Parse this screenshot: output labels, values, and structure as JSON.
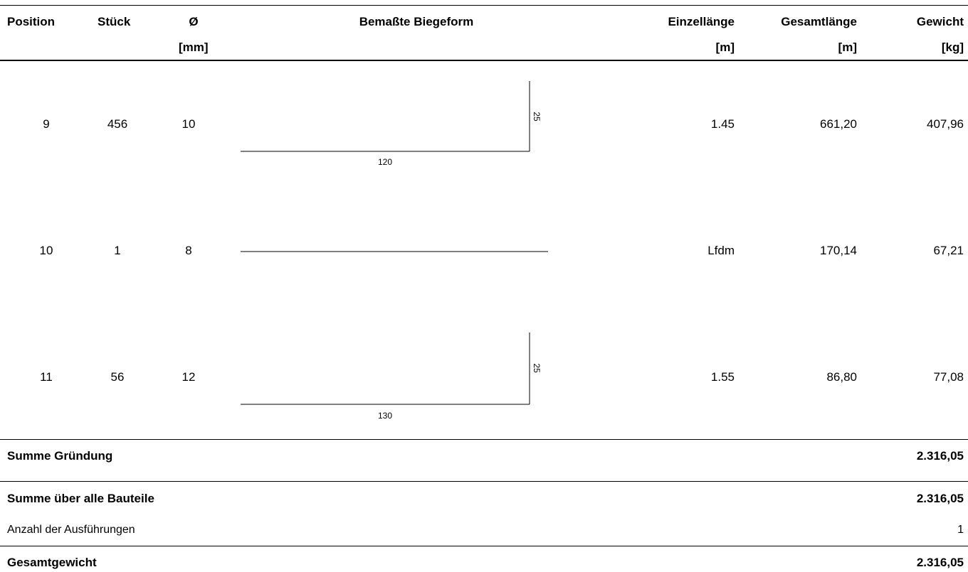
{
  "header": {
    "position": "Position",
    "stueck": "Stück",
    "durchmesser": "Ø",
    "durchmesser_unit": "[mm]",
    "biegeform": "Bemaßte Biegeform",
    "einzellaenge": "Einzellänge",
    "einzellaenge_unit": "[m]",
    "gesamtlaenge": "Gesamtlänge",
    "gesamtlaenge_unit": "[m]",
    "gewicht": "Gewicht",
    "gewicht_unit": "[kg]"
  },
  "rows": [
    {
      "position": "9",
      "stueck": "456",
      "durchmesser": "10",
      "shape": {
        "type": "angle",
        "horizontal_label": "120",
        "vertical_label": "25"
      },
      "einzellaenge": "1.45",
      "gesamtlaenge": "661,20",
      "gewicht": "407,96"
    },
    {
      "position": "10",
      "stueck": "1",
      "durchmesser": "8",
      "shape": {
        "type": "straight"
      },
      "einzellaenge": "Lfdm",
      "gesamtlaenge": "170,14",
      "gewicht": "67,21"
    },
    {
      "position": "11",
      "stueck": "56",
      "durchmesser": "12",
      "shape": {
        "type": "angle",
        "horizontal_label": "130",
        "vertical_label": "25"
      },
      "einzellaenge": "1.55",
      "gesamtlaenge": "86,80",
      "gewicht": "77,08"
    }
  ],
  "summary": {
    "summe_gruendung_label": "Summe Gründung",
    "summe_gruendung_value": "2.316,05",
    "summe_alle_label": "Summe über alle Bauteile",
    "summe_alle_value": "2.316,05",
    "anzahl_label": "Anzahl der Ausführungen",
    "anzahl_value": "1",
    "gesamtgewicht_label": "Gesamtgewicht",
    "gesamtgewicht_value": "2.316,05"
  }
}
